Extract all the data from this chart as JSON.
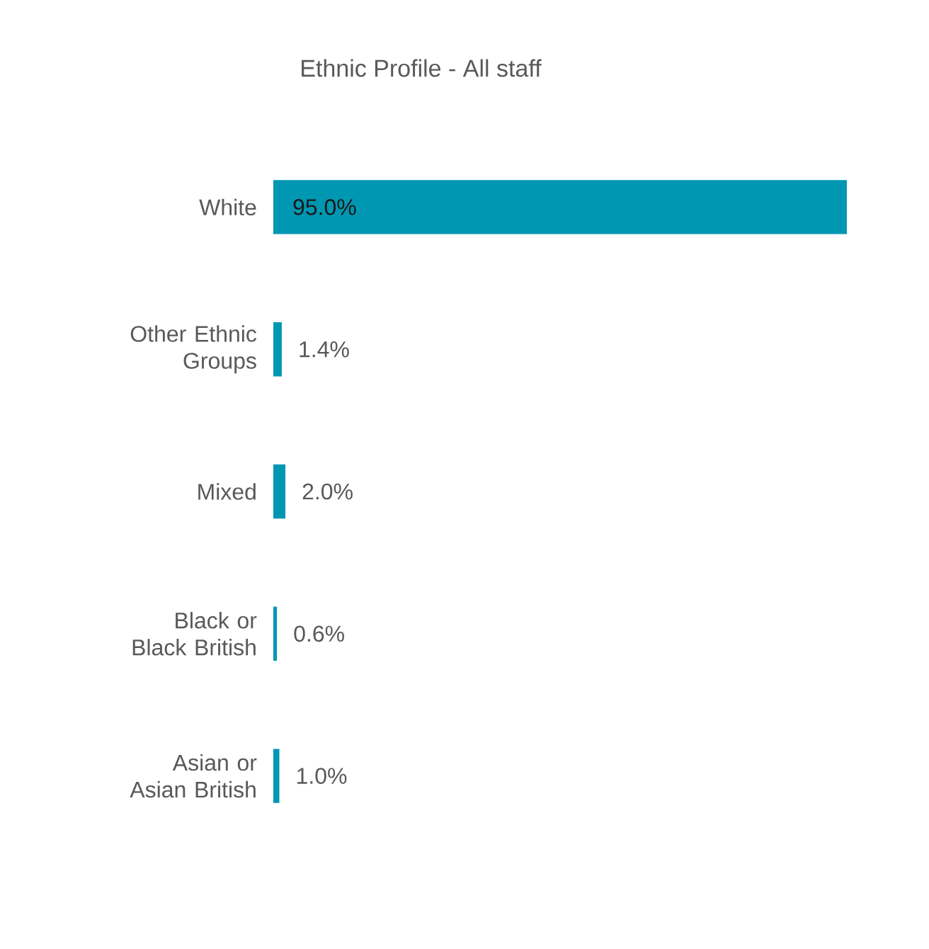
{
  "chart_data": {
    "type": "bar",
    "orientation": "horizontal",
    "title": "Ethnic Profile - All staff",
    "categories": [
      "White",
      "Other Ethnic Groups",
      "Mixed",
      "Black or Black British",
      "Asian or Asian British"
    ],
    "values": [
      95.0,
      1.4,
      2.0,
      0.6,
      1.0
    ],
    "value_labels": [
      "95.0%",
      "1.4%",
      "2.0%",
      "0.6%",
      "1.0%"
    ],
    "color": "#0097b2"
  }
}
